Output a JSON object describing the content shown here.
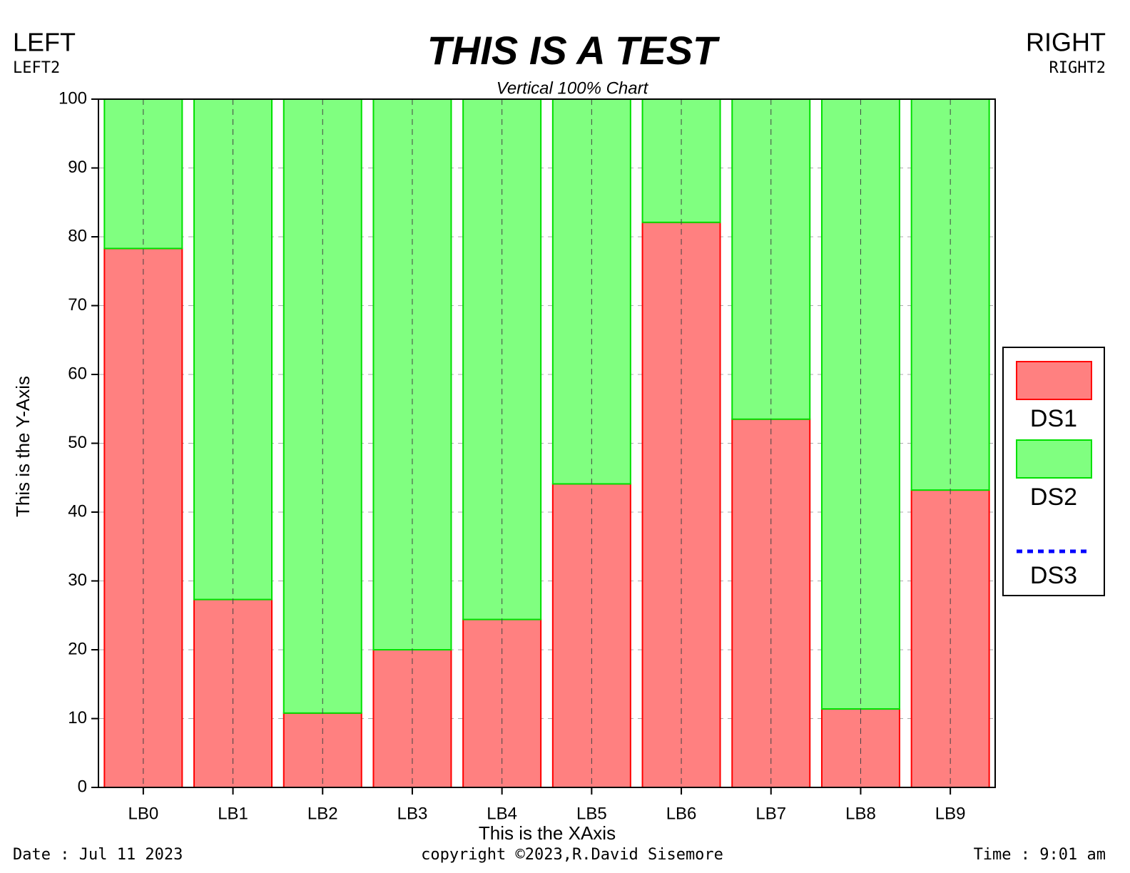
{
  "chart_data": {
    "type": "bar",
    "stacked": true,
    "title": "THIS IS A TEST",
    "subtitle": "Vertical 100% Chart",
    "x_label": "This is the XAxis",
    "y_label": "This is the Y-Axis",
    "categories": [
      "LB0",
      "LB1",
      "LB2",
      "LB3",
      "LB4",
      "LB5",
      "LB6",
      "LB7",
      "LB8",
      "LB9"
    ],
    "series": [
      {
        "name": "DS1",
        "color": "#ff8080",
        "edge": "#ff0000",
        "values": [
          78.3,
          27.3,
          10.8,
          20,
          24.4,
          44.1,
          82.1,
          53.5,
          11.4,
          43.2
        ]
      },
      {
        "name": "DS2",
        "color": "#80ff80",
        "edge": "#00e000",
        "values": [
          21.7,
          72.7,
          89.2,
          80,
          75.6,
          55.9,
          17.9,
          46.5,
          88.6,
          56.8
        ]
      },
      {
        "name": "DS3",
        "color": "#0000ff",
        "line": "dotted",
        "values": [
          null,
          null,
          null,
          null,
          null,
          null,
          null,
          null,
          null,
          null
        ]
      }
    ],
    "ylim": [
      0,
      100
    ],
    "yticks": [
      0,
      10,
      20,
      30,
      40,
      50,
      60,
      70,
      80,
      90,
      100
    ],
    "grid": true,
    "legend": "right"
  },
  "header": {
    "left": "LEFT",
    "left2": "LEFT2",
    "right": "RIGHT",
    "right2": "RIGHT2"
  },
  "footer": {
    "date": "Date : Jul 11 2023",
    "copyright": "copyright ©2023,R.David Sisemore",
    "time": "Time : 9:01 am"
  }
}
